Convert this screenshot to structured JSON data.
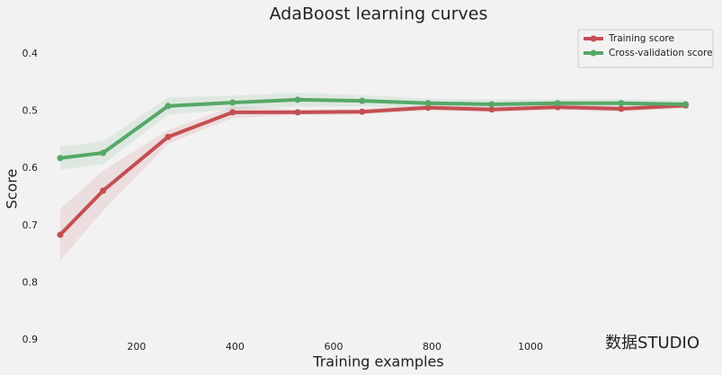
{
  "chart_data": {
    "type": "line",
    "title": "AdaBoost learning curves",
    "xlabel": "Training examples",
    "ylabel": "Score",
    "x": [
      45,
      132,
      264,
      395,
      527,
      658,
      792,
      921,
      1055,
      1184,
      1315
    ],
    "series": [
      {
        "name": "Training score",
        "color": "#c44e52",
        "values": [
          0.716,
          0.639,
          0.545,
          0.502,
          0.502,
          0.501,
          0.494,
          0.497,
          0.493,
          0.496,
          0.49
        ],
        "std": [
          0.045,
          0.035,
          0.012,
          0.01,
          0.005,
          0.005,
          0.005,
          0.005,
          0.005,
          0.005,
          0.005
        ]
      },
      {
        "name": "Cross-validation score",
        "color": "#55a868",
        "values": [
          0.582,
          0.573,
          0.491,
          0.485,
          0.48,
          0.482,
          0.486,
          0.488,
          0.486,
          0.486,
          0.488
        ],
        "std": [
          0.02,
          0.02,
          0.015,
          0.012,
          0.012,
          0.01,
          0.008,
          0.008,
          0.007,
          0.007,
          0.007
        ]
      }
    ],
    "xlim": [
      14,
      1365
    ],
    "xticks": [
      200,
      400,
      600,
      800,
      1000
    ],
    "ylim": [
      0.4,
      0.9
    ],
    "yinverted": true,
    "yticks": [
      0.4,
      0.5,
      0.6,
      0.7,
      0.8,
      0.9
    ],
    "grid": false,
    "legend": "upper right",
    "watermark": "数据STUDIO"
  }
}
